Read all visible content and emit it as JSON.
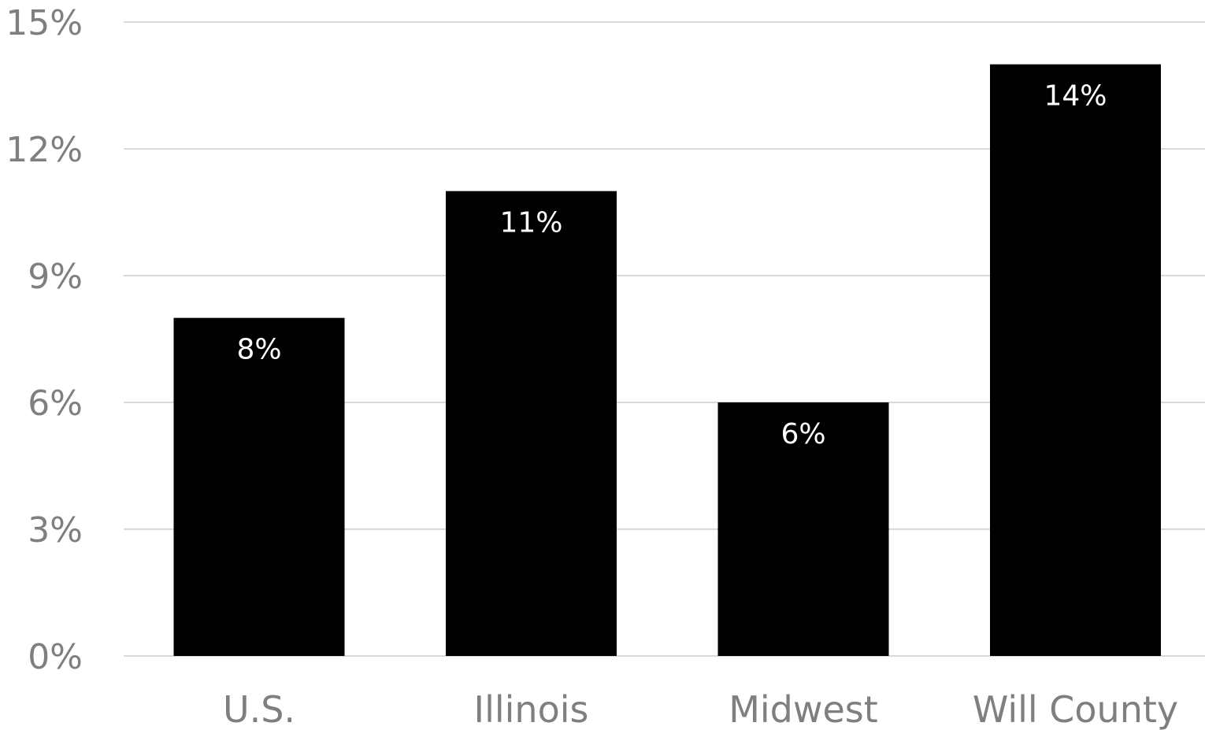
{
  "chart_data": {
    "type": "bar",
    "categories": [
      "U.S.",
      "Illinois",
      "Midwest",
      "Will County"
    ],
    "values": [
      8,
      11,
      6,
      14
    ],
    "data_labels": [
      "8%",
      "11%",
      "6%",
      "14%"
    ],
    "title": "",
    "xlabel": "",
    "ylabel": "",
    "ylim": [
      0,
      15
    ],
    "yticks": [
      0,
      3,
      6,
      9,
      12,
      15
    ],
    "ytick_labels": [
      "0%",
      "3%",
      "6%",
      "9%",
      "12%",
      "15%"
    ],
    "grid": true,
    "legend": "none",
    "colors": {
      "bar": "#000000",
      "grid": "#d9d9d9",
      "axis_text": "#7f7f7f",
      "data_label_text": "#ffffff"
    }
  }
}
